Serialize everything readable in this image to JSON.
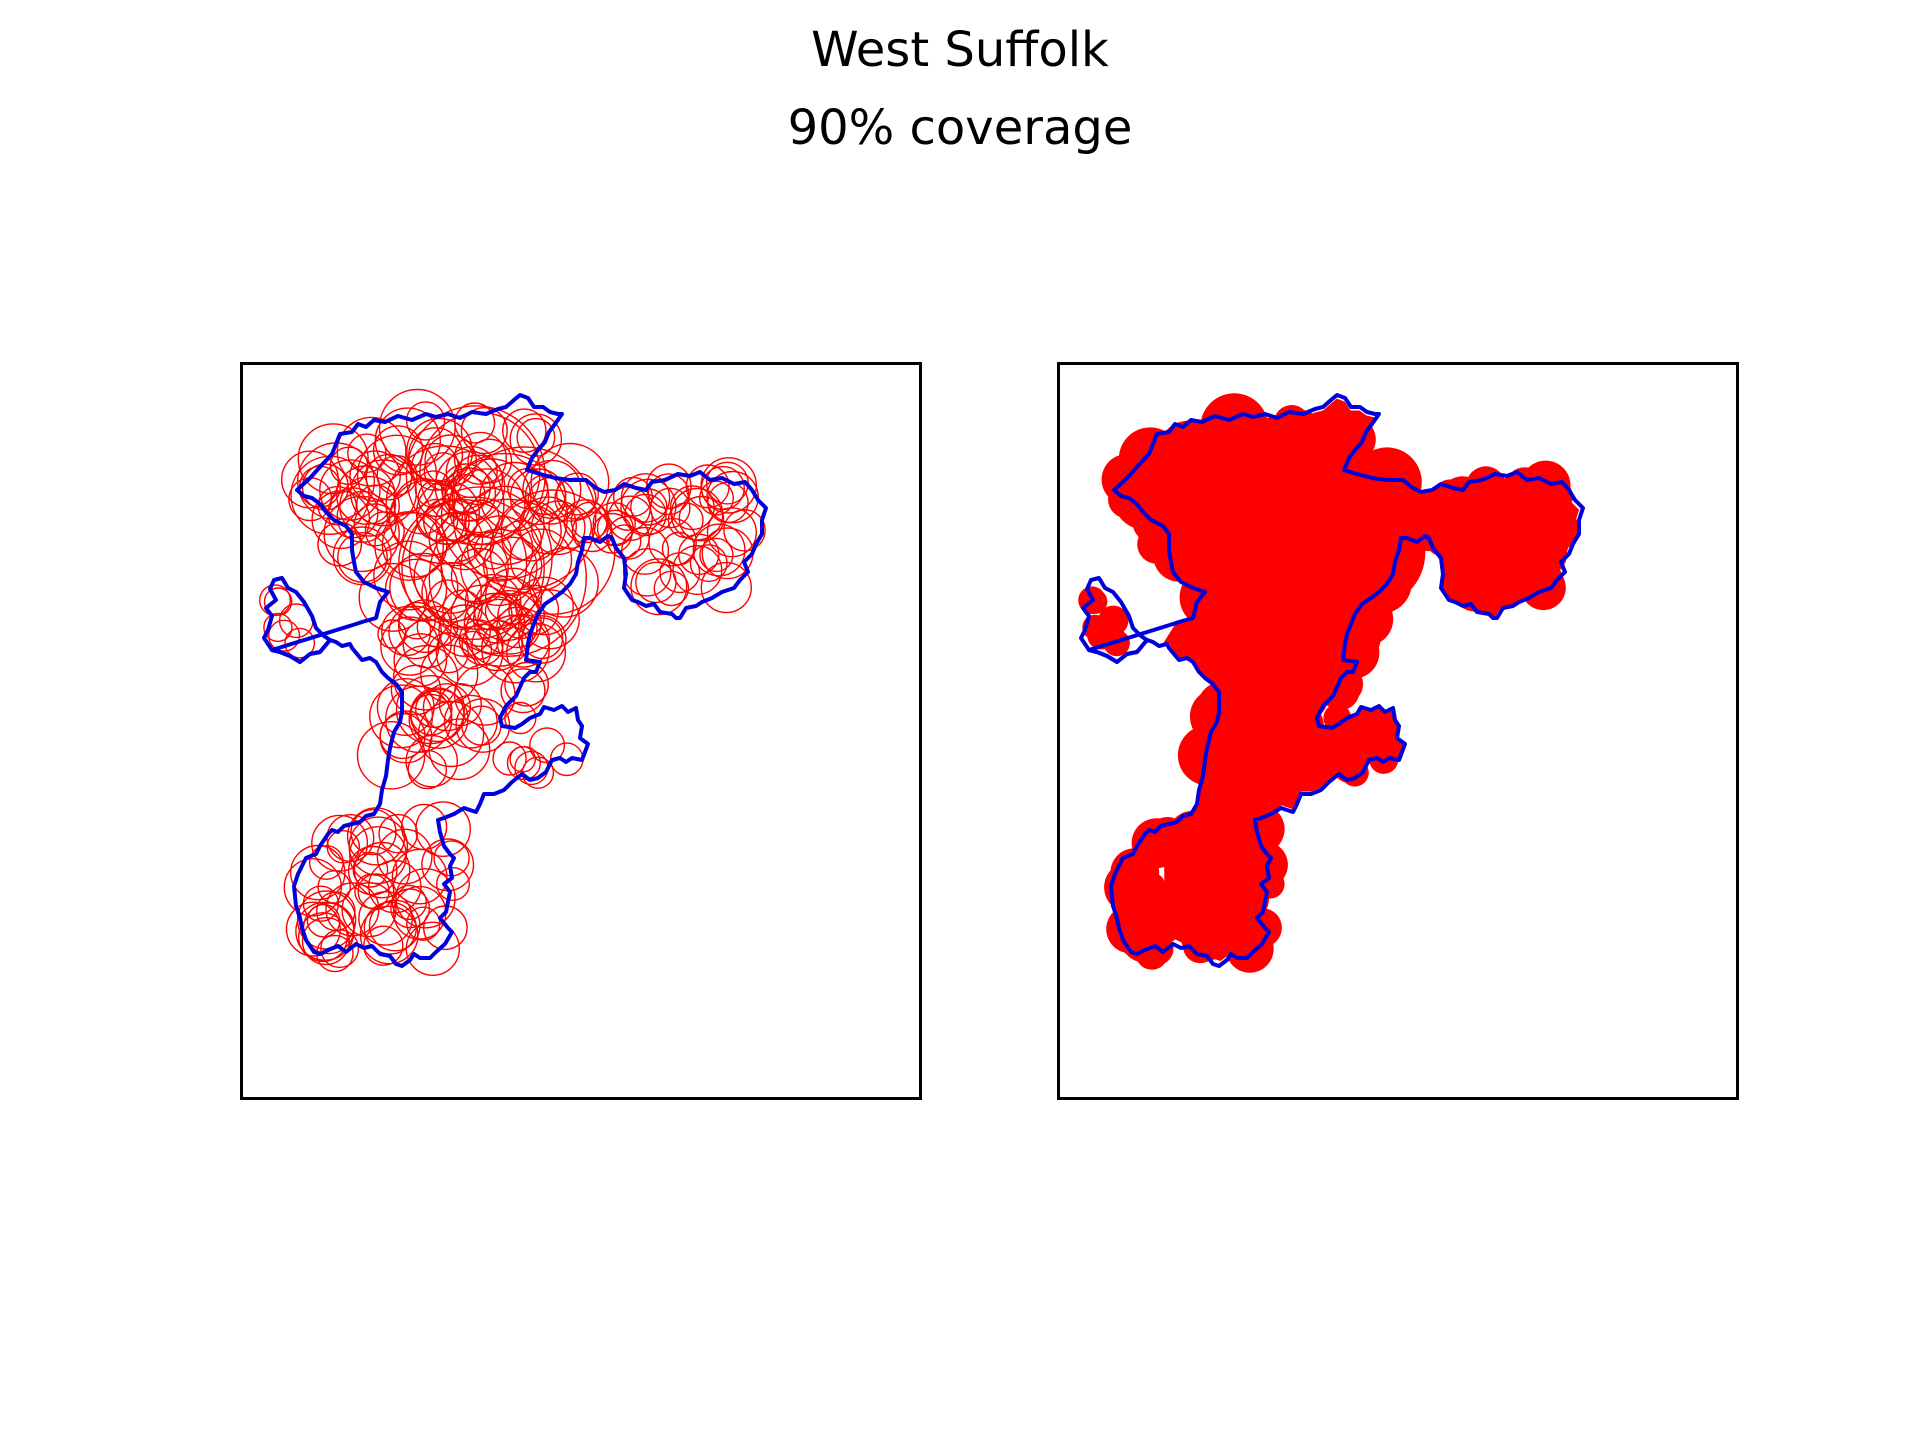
{
  "figure": {
    "title": "West Suffolk",
    "subtitle": "90% coverage",
    "panels": [
      {
        "id": "left",
        "style": "outlined circles",
        "fill": "none",
        "stroke": "#ff0000"
      },
      {
        "id": "right",
        "style": "filled circles",
        "fill": "#ff0000",
        "stroke": "#ff0000"
      }
    ],
    "colors": {
      "boundary": "#0000dd",
      "circles": "#ff0000",
      "frame": "#000000",
      "background": "#ffffff"
    }
  }
}
